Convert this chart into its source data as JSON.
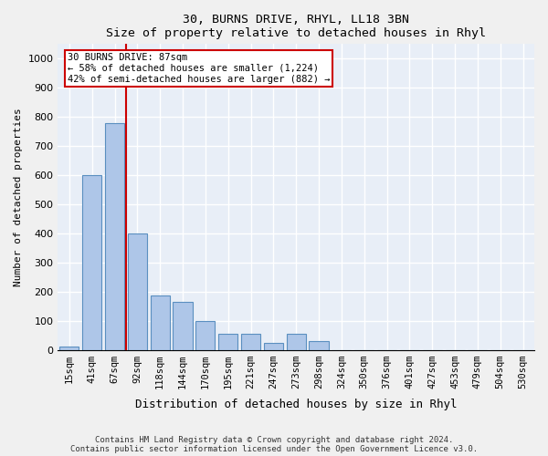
{
  "title": "30, BURNS DRIVE, RHYL, LL18 3BN",
  "subtitle": "Size of property relative to detached houses in Rhyl",
  "xlabel": "Distribution of detached houses by size in Rhyl",
  "ylabel": "Number of detached properties",
  "footer_line1": "Contains HM Land Registry data © Crown copyright and database right 2024.",
  "footer_line2": "Contains public sector information licensed under the Open Government Licence v3.0.",
  "bin_labels": [
    "15sqm",
    "41sqm",
    "67sqm",
    "92sqm",
    "118sqm",
    "144sqm",
    "170sqm",
    "195sqm",
    "221sqm",
    "247sqm",
    "273sqm",
    "298sqm",
    "324sqm",
    "350sqm",
    "376sqm",
    "401sqm",
    "427sqm",
    "453sqm",
    "479sqm",
    "504sqm",
    "530sqm"
  ],
  "bar_values": [
    10,
    600,
    780,
    400,
    185,
    165,
    100,
    55,
    55,
    25,
    55,
    30,
    0,
    0,
    0,
    0,
    0,
    0,
    0,
    0,
    0
  ],
  "bar_color": "#aec6e8",
  "bar_edge_color": "#5a8fc0",
  "background_color": "#e8eef7",
  "grid_color": "#ffffff",
  "vline_x": 2.5,
  "vline_color": "#cc0000",
  "annotation_text": "30 BURNS DRIVE: 87sqm\n← 58% of detached houses are smaller (1,224)\n42% of semi-detached houses are larger (882) →",
  "annotation_box_color": "#ffffff",
  "annotation_box_edge": "#cc0000",
  "ylim": [
    0,
    1050
  ],
  "yticks": [
    0,
    100,
    200,
    300,
    400,
    500,
    600,
    700,
    800,
    900,
    1000
  ]
}
